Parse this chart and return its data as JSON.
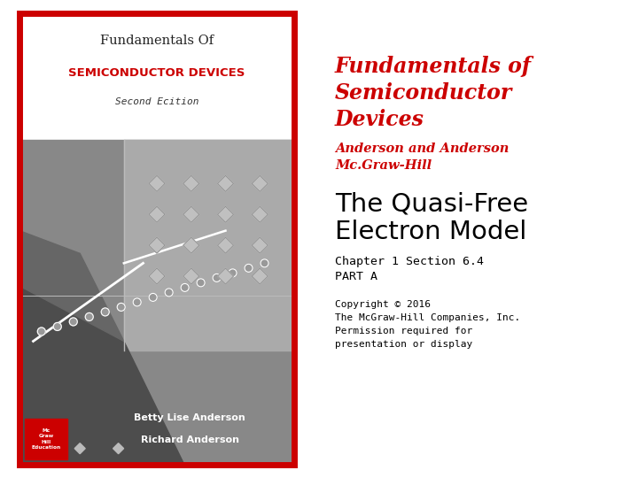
{
  "background_color": "#ffffff",
  "book_border_color": "#cc0000",
  "book_title_line1": "Fundamentals Of",
  "book_title_line1_color": "#222222",
  "book_title_line2": "SEMICONDUCTOR DEVICES",
  "book_title_line2_color": "#cc0000",
  "book_subtitle": "Second Ecition",
  "book_subtitle_color": "#333333",
  "book_author1": "Betty Lise Anderson",
  "book_author2": "Richard Anderson",
  "slide_title_line1": "Fundamentals of",
  "slide_title_line2": "Semiconductor",
  "slide_title_line3": "Devices",
  "slide_title_color": "#cc0000",
  "authors_line1": "Anderson and Anderson",
  "authors_line2": "Mc.Graw-Hill",
  "authors_color": "#cc0000",
  "chapter_title_line1": "The Quasi-Free",
  "chapter_title_line2": "Electron Model",
  "chapter_title_color": "#000000",
  "chapter_info_line1": "Chapter 1 Section 6.4",
  "chapter_info_line2": "PART A",
  "chapter_info_color": "#000000",
  "copyright_line1": "Copyright © 2016",
  "copyright_line2": "The McGraw-Hill Companies, Inc.",
  "copyright_line3": "Permission required for",
  "copyright_line4": "presentation or display",
  "copyright_color": "#000000",
  "mcgraw_box_color": "#cc0000"
}
